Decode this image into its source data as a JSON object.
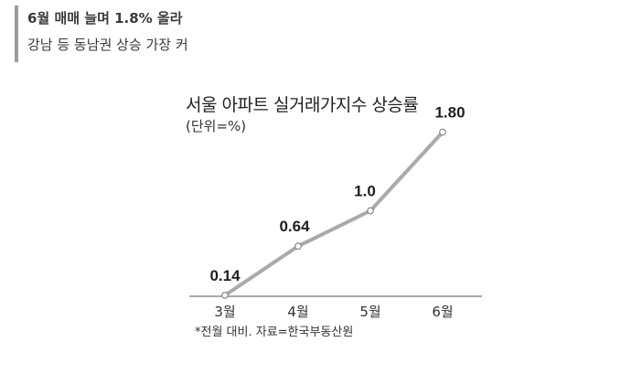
{
  "header": {
    "line1": "6월 매매 늘며 1.8% 올라",
    "line2": "강남 등 동남권 상승 가장 커",
    "bar_color": "#9c9c9c"
  },
  "chart_data": {
    "type": "line",
    "title": "서울 아파트 실거래가지수 상승률",
    "unit": "(단위=%)",
    "note": "*전월 대비. 자료=한국부동산원",
    "categories": [
      "3월",
      "4월",
      "5월",
      "6월"
    ],
    "values": [
      0.14,
      0.64,
      1.0,
      1.8
    ],
    "data_labels": [
      "0.14",
      "0.64",
      "1.0",
      "1.80"
    ],
    "ylim": [
      0,
      2
    ],
    "grid": false,
    "line_color": "#aaaaaa",
    "marker_fill": "#ffffff",
    "marker_stroke": "#888888",
    "axis_color": "#777777"
  }
}
